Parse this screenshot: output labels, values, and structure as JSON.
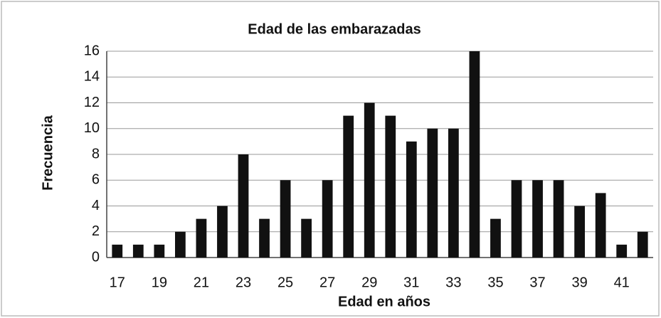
{
  "chart_data": {
    "type": "bar",
    "title": "Edad de las embarazadas",
    "x_label": "Edad en años",
    "y_label": "Frecuencia",
    "categories": [
      "17",
      null,
      "19",
      null,
      "21",
      null,
      "23",
      null,
      "25",
      null,
      "27",
      null,
      "29",
      null,
      "31",
      null,
      "33",
      null,
      "35",
      null,
      "37",
      null,
      "39",
      null,
      "41",
      null
    ],
    "values": [
      1,
      1,
      1,
      2,
      3,
      4,
      8,
      3,
      6,
      3,
      6,
      11,
      12,
      11,
      9,
      10,
      10,
      16,
      3,
      6,
      6,
      6,
      4,
      5,
      1,
      2
    ],
    "color": "#111111",
    "ylim": [
      0,
      16
    ],
    "yticks": [
      0,
      2,
      4,
      6,
      8,
      10,
      12,
      14,
      16
    ],
    "grid": true
  }
}
